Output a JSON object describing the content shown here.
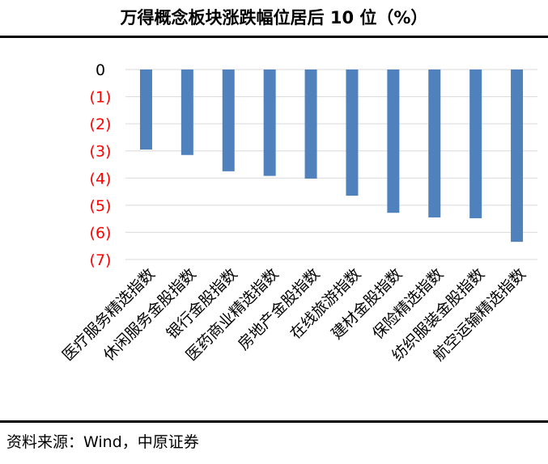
{
  "source": "资料来源：Wind，中原证券",
  "chart_data": {
    "type": "bar",
    "title": "万得概念板块涨跌幅位居后 10 位（%）",
    "categories": [
      "医疗服务精选指数",
      "休闲服务金股指数",
      "银行金股指数",
      "医药商业精选指数",
      "房地产金股指数",
      "在线旅游指数",
      "建材金股指数",
      "保险精选指数",
      "纺织服装金股指数",
      "航空运输精选指数"
    ],
    "values": [
      -2.95,
      -3.15,
      -3.75,
      -3.92,
      -4.02,
      -4.65,
      -5.28,
      -5.45,
      -5.48,
      -6.35
    ],
    "ylim": [
      -7,
      0
    ],
    "yticks": [
      0,
      -1,
      -2,
      -3,
      -4,
      -5,
      -6,
      -7
    ],
    "ytick_labels": [
      "0",
      "(1)",
      "(2)",
      "(3)",
      "(4)",
      "(5)",
      "(6)",
      "(7)"
    ],
    "grid": true,
    "colors": {
      "bar": "#4f81bd",
      "negative_tick": "#ff0000",
      "zero_tick": "#000000",
      "grid": "#d9d9d9"
    }
  }
}
